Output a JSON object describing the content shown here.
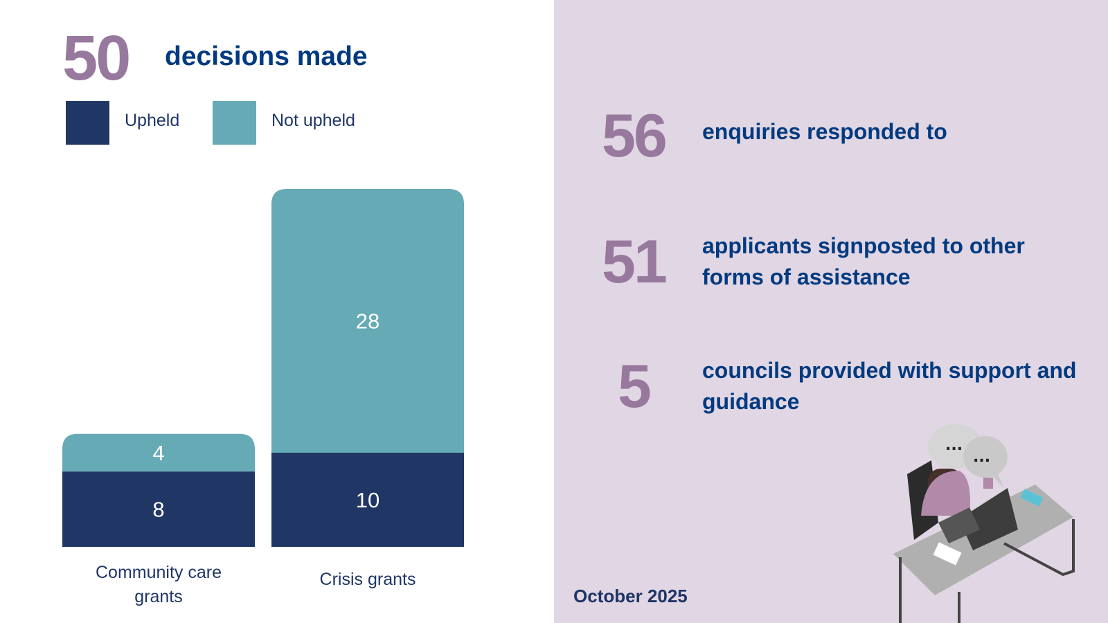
{
  "header": {
    "total": "50",
    "label": "decisions made"
  },
  "chart_data": {
    "type": "bar",
    "stacked": true,
    "categories": [
      "Community care grants",
      "Crisis grants"
    ],
    "category_lines": [
      [
        "Community care",
        "grants"
      ],
      [
        "Crisis grants"
      ]
    ],
    "series": [
      {
        "name": "Upheld",
        "values": [
          8,
          10
        ],
        "color": "#203766"
      },
      {
        "name": "Not upheld",
        "values": [
          4,
          28
        ],
        "color": "#66aab5"
      }
    ],
    "legend": "top-left",
    "grid": false
  },
  "stats": [
    {
      "number": "56",
      "text": "enquiries responded to"
    },
    {
      "number": "51",
      "text": "applicants signposted to other forms of assistance"
    },
    {
      "number": "5",
      "text": "councils provided with support and guidance"
    }
  ],
  "date": "October 2025",
  "speech_bubbles": [
    "...",
    "..."
  ]
}
